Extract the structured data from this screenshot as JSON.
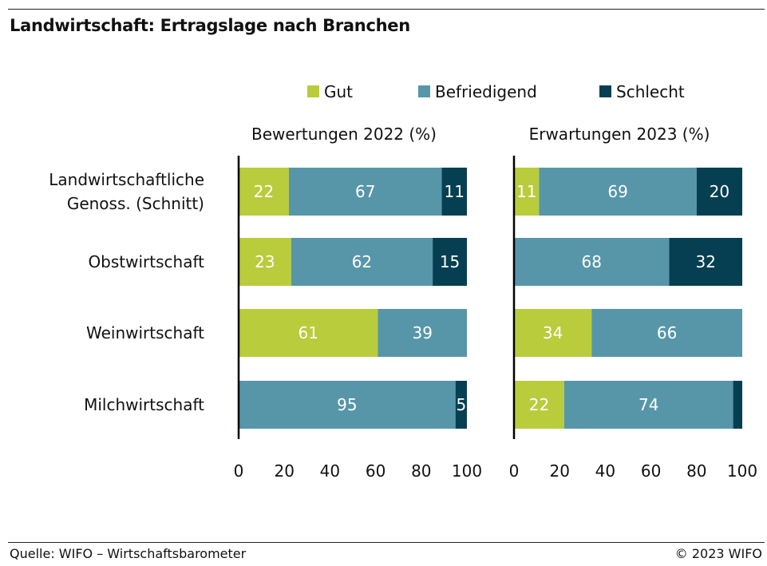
{
  "title": "Landwirtschaft: Ertragslage nach Branchen",
  "footer": {
    "source": "Quelle: WIFO – Wirtschaftsbarometer",
    "copyright": "© 2023 WIFO"
  },
  "colors": {
    "gut": "#b9cc3c",
    "befriedigend": "#5796a9",
    "schlecht": "#063f52",
    "bar_label": "#ffffff",
    "axis": "#000000"
  },
  "chart_data": {
    "type": "bar",
    "orientation": "horizontal",
    "stacked": true,
    "legend": {
      "placement": "top",
      "entries": [
        "Gut",
        "Befriedigend",
        "Schlecht"
      ]
    },
    "categories": [
      [
        "Landwirtschaftliche",
        "Genoss. (Schnitt)"
      ],
      [
        "Obstwirtschaft"
      ],
      [
        "Weinwirtschaft"
      ],
      [
        "Milchwirtschaft"
      ]
    ],
    "xlim": [
      0,
      100
    ],
    "xticks": [
      "0",
      "20",
      "40",
      "60",
      "80",
      "100"
    ],
    "grid": false,
    "panels": [
      {
        "title": "Bewertungen 2022 (%)",
        "series": [
          {
            "name": "Gut",
            "values": [
              22,
              23,
              61,
              0
            ]
          },
          {
            "name": "Befriedigend",
            "values": [
              67,
              62,
              39,
              95
            ]
          },
          {
            "name": "Schlecht",
            "values": [
              11,
              15,
              0,
              5
            ]
          }
        ]
      },
      {
        "title": "Erwartungen 2023 (%)",
        "series": [
          {
            "name": "Gut",
            "values": [
              11,
              0,
              34,
              22
            ]
          },
          {
            "name": "Befriedigend",
            "values": [
              69,
              68,
              66,
              74
            ]
          },
          {
            "name": "Schlecht",
            "values": [
              20,
              32,
              0,
              4
            ]
          }
        ]
      }
    ]
  }
}
